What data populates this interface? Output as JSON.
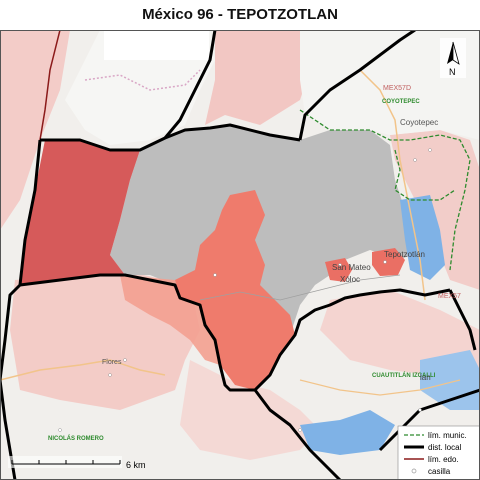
{
  "title": "México 96 - TEPOTZOTLAN",
  "north_label": "N",
  "scale_label": "6 km",
  "legend": [
    {
      "label": "lím. munic.",
      "style": "dashed-green",
      "color": "#2e8b2e"
    },
    {
      "label": "dist. local",
      "style": "thick-black",
      "color": "#000000"
    },
    {
      "label": "lím. edo.",
      "style": "red-line",
      "color": "#8b1a1a"
    },
    {
      "label": "casilla",
      "style": "circle",
      "color": "#aaaaaa"
    }
  ],
  "place_labels": {
    "mex57d": "MEX57D",
    "coyotepec_caps": "COYOTEPEC",
    "coyotepec": "Coyotepec",
    "san_mateo": "San Mateo",
    "xoloc": "Xóloc",
    "tepotzotlan": "Tepotzotlán",
    "mex57": "MEX57",
    "cuautitlan_izcalli": "CUAUTITLÁN IZCALLI",
    "flores": "Flores",
    "nicolas_romero": "NICOLÁS ROMERO",
    "lan": "lan"
  },
  "colors": {
    "base_map": "#f1efec",
    "municipality_gray": "#bdbdbd",
    "dark_red": "#d65a5a",
    "salmon": "#ef8a7a",
    "light_pink": "#f3c3c0",
    "pale_pink": "#f6dcda",
    "blue": "#7fb2e6",
    "district_line": "#000000",
    "municipal_line": "#2e8b2e",
    "state_line": "#8b1a1a"
  }
}
